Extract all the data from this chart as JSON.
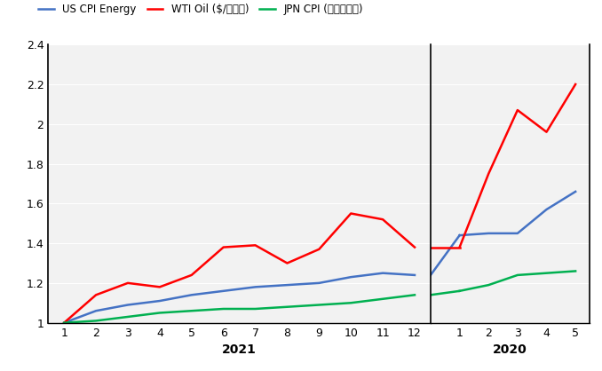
{
  "legend_labels": [
    "US CPI Energy",
    "WTI Oil ($/バレル)",
    "JPN CPI (エネルギー)"
  ],
  "legend_colors": [
    "#4472C4",
    "#FF0000",
    "#00B050"
  ],
  "section1_label": "2021",
  "section2_label": "2020",
  "section1_ticks": [
    1,
    2,
    3,
    4,
    5,
    6,
    7,
    8,
    9,
    10,
    11,
    12
  ],
  "section2_ticks": [
    1,
    2,
    3,
    4,
    5
  ],
  "us_cpi_2021": [
    1.0,
    1.06,
    1.09,
    1.11,
    1.14,
    1.16,
    1.18,
    1.19,
    1.2,
    1.23,
    1.25,
    1.24
  ],
  "us_cpi_2022": [
    1.27,
    1.44,
    1.45,
    1.45,
    1.57,
    1.66
  ],
  "wti_2021": [
    1.0,
    1.14,
    1.2,
    1.18,
    1.24,
    1.38,
    1.39,
    1.3,
    1.37,
    1.55,
    1.52,
    1.38
  ],
  "wti_2022": [
    1.38,
    1.75,
    2.07,
    1.96,
    2.2
  ],
  "jpn_cpi_2021": [
    1.0,
    1.01,
    1.03,
    1.05,
    1.06,
    1.07,
    1.07,
    1.08,
    1.09,
    1.1,
    1.12,
    1.14
  ],
  "jpn_cpi_2022": [
    1.16,
    1.19,
    1.24,
    1.25,
    1.26
  ],
  "ylim": [
    1.0,
    2.4
  ],
  "yticks": [
    1.0,
    1.2,
    1.4,
    1.6,
    1.8,
    2.0,
    2.2,
    2.4
  ],
  "bg_color": "#F2F2F2",
  "line_width": 1.8
}
